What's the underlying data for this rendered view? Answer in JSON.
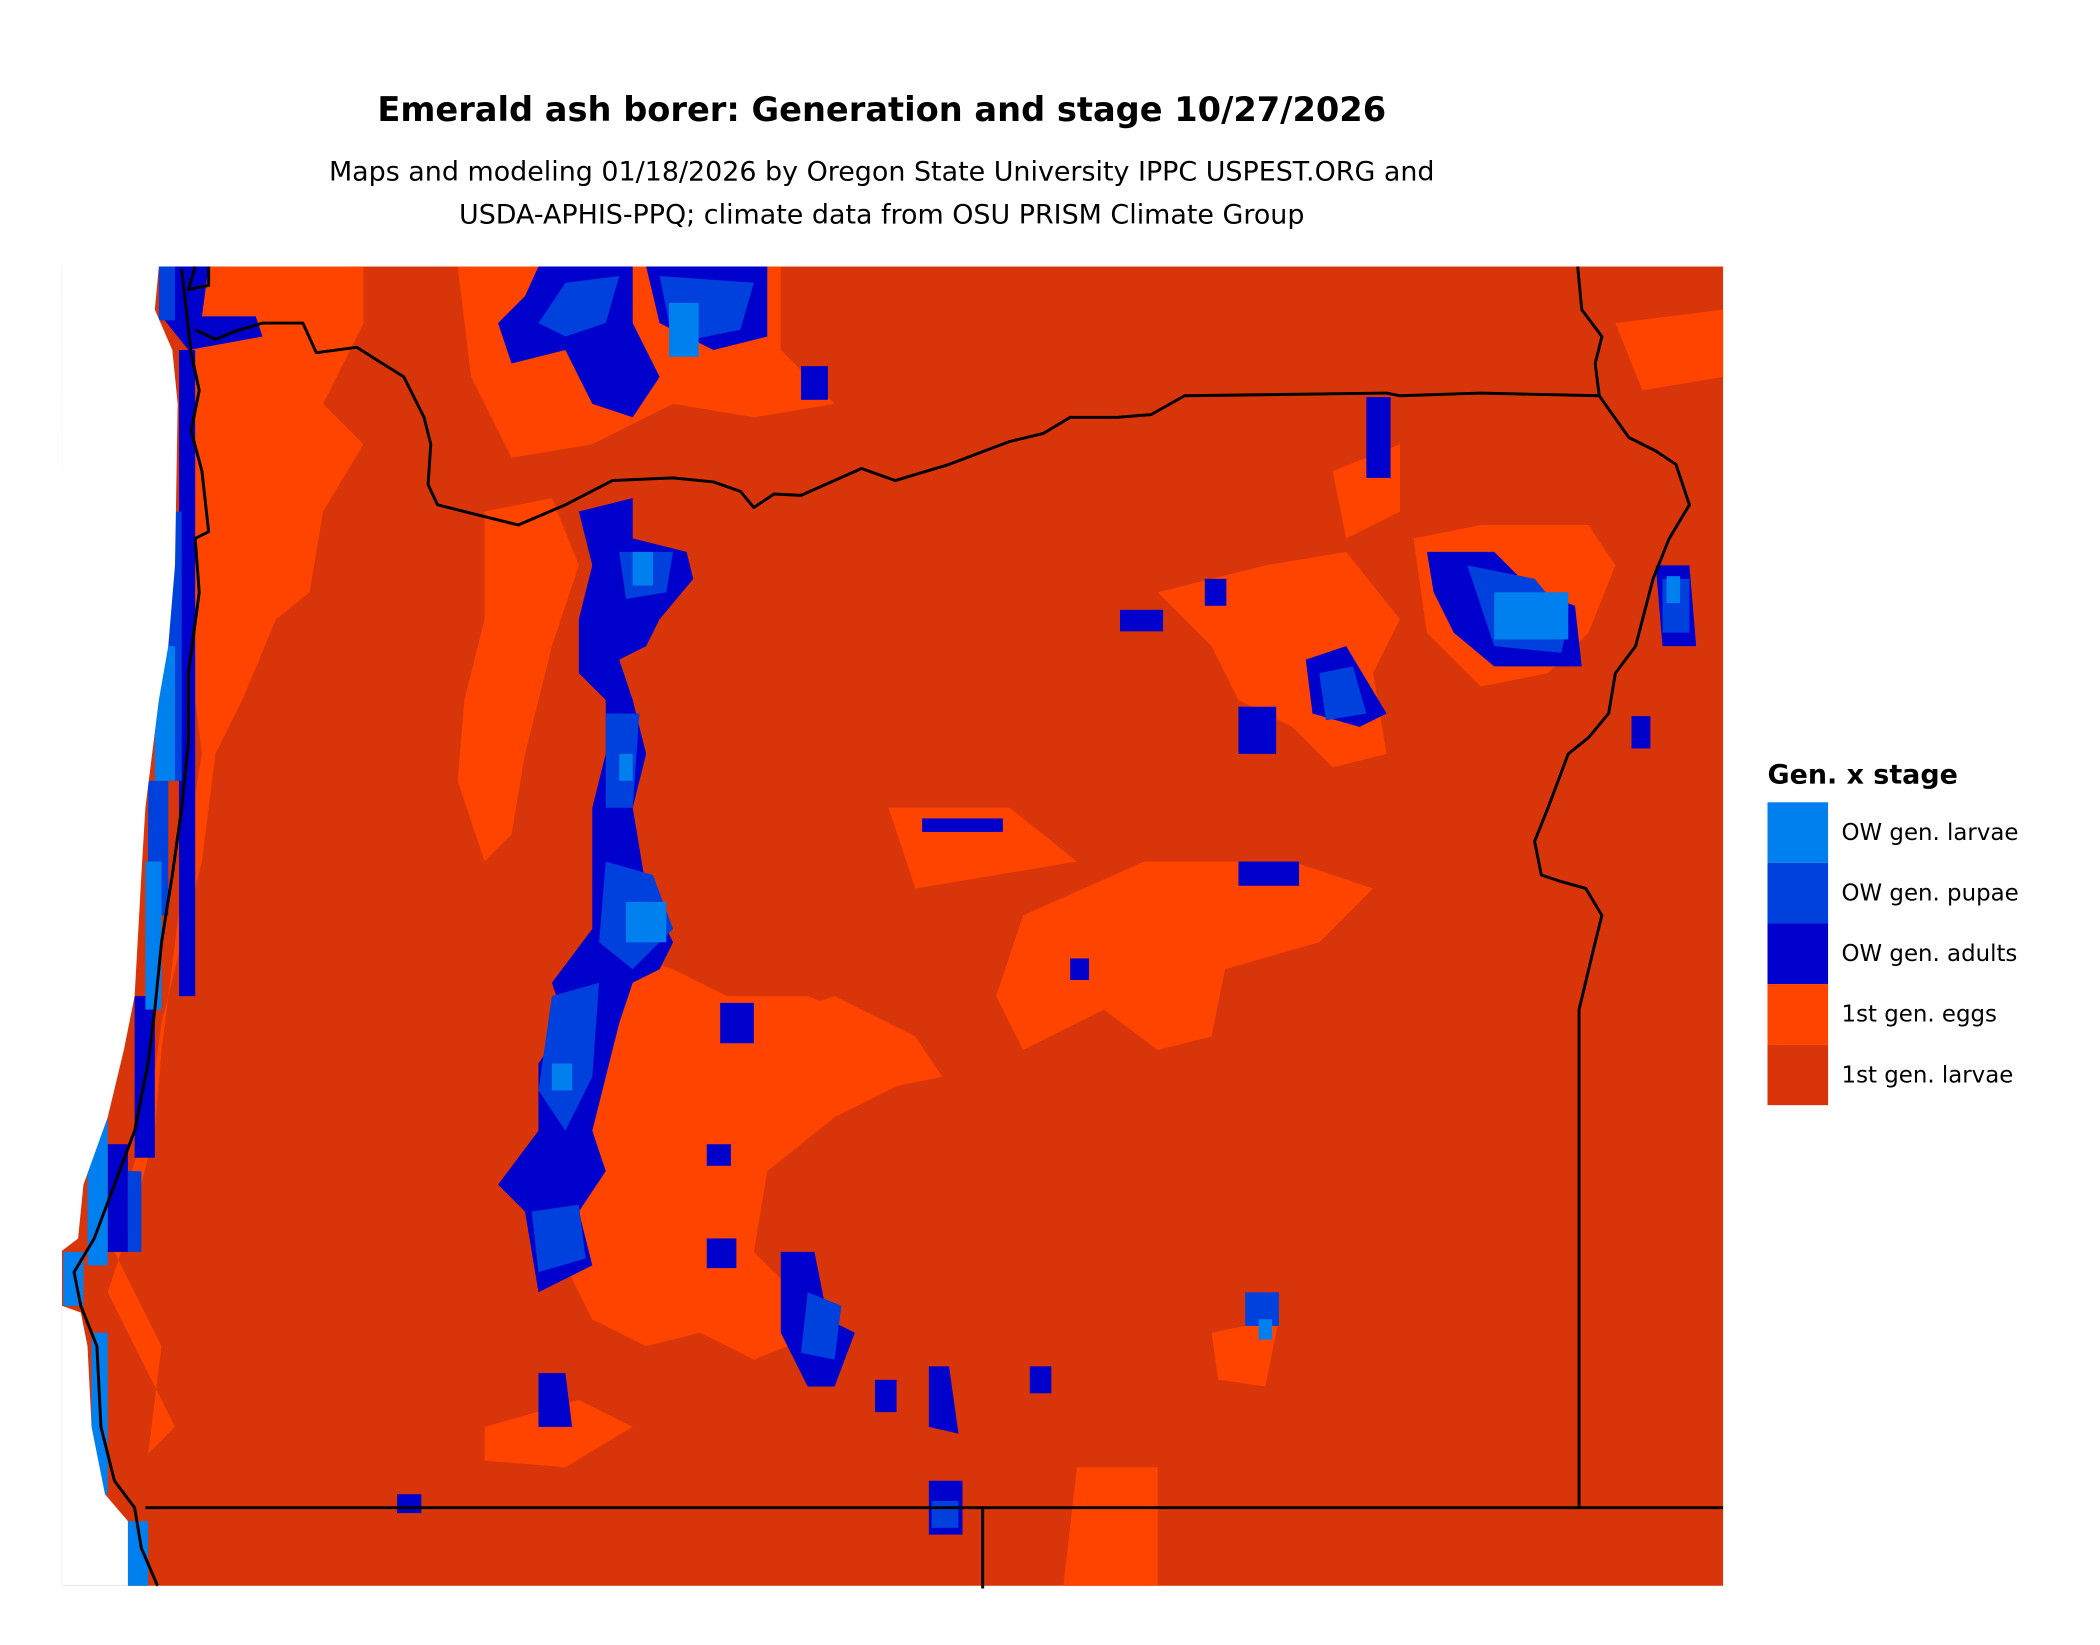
{
  "title": "Emerald ash borer: Generation and stage 10/27/2026",
  "subtitle": [
    "Maps and modeling 01/18/2026 by Oregon State University IPPC USPEST.ORG and",
    "USDA-APHIS-PPQ; climate data from OSU PRISM Climate Group"
  ],
  "legend": {
    "title": "Gen. x stage",
    "items": [
      {
        "label": "OW gen. larvae",
        "color": "#0080EE"
      },
      {
        "label": "OW gen. pupae",
        "color": "#0040DD"
      },
      {
        "label": "OW gen. adults",
        "color": "#0000CC"
      },
      {
        "label": "1st gen. eggs",
        "color": "#FF4400"
      },
      {
        "label": "1st gen. larvae",
        "color": "#D9350B"
      }
    ]
  }
}
